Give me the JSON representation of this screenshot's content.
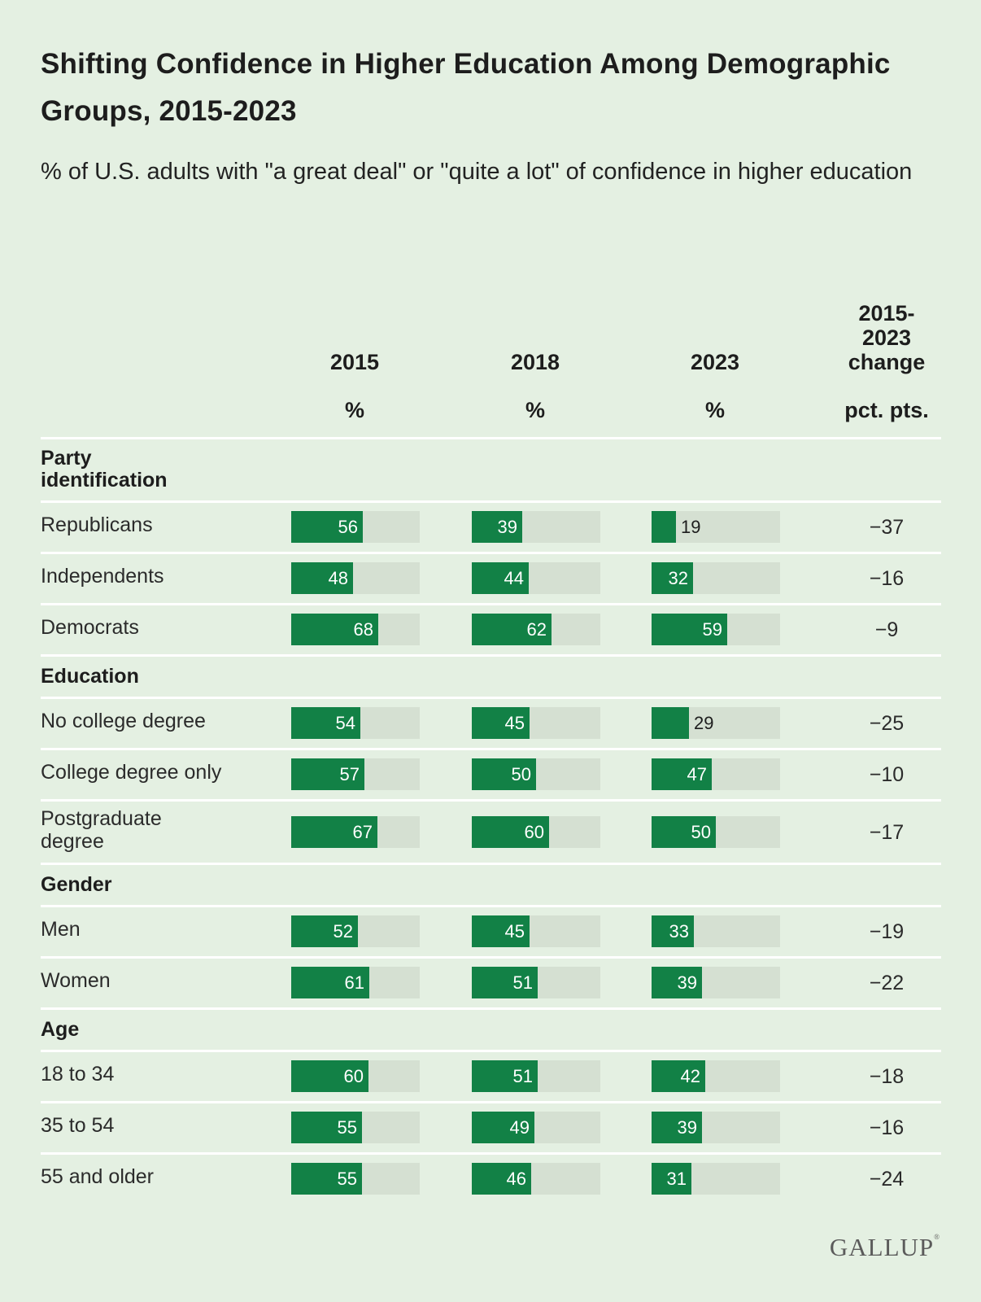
{
  "title": "Shifting Confidence in Higher Education Among Demographic Groups, 2015-2023",
  "subtitle": "% of U.S. adults with \"a great deal\" or \"quite a lot\" of confidence in higher education",
  "columns": [
    {
      "label": "2015",
      "unit": "%"
    },
    {
      "label": "2018",
      "unit": "%"
    },
    {
      "label": "2023",
      "unit": "%"
    },
    {
      "label": "2015-\n2023\nchange",
      "unit": "pct. pts."
    }
  ],
  "logo": "GALLUP",
  "colors": {
    "bar": "#128146",
    "track": "#d5e0d2",
    "background": "#e4f0e2"
  },
  "chart_data": {
    "type": "bar",
    "title": "Shifting Confidence in Higher Education Among Demographic Groups, 2015-2023",
    "subtitle": "% of U.S. adults with \"a great deal\" or \"quite a lot\" of confidence in higher education",
    "ylim": [
      0,
      100
    ],
    "series_names": [
      "2015",
      "2018",
      "2023"
    ],
    "groups": [
      {
        "name": "Party\nidentification",
        "rows": [
          {
            "label": "Republicans",
            "values": [
              56,
              39,
              19
            ],
            "change": "−37"
          },
          {
            "label": "Independents",
            "values": [
              48,
              44,
              32
            ],
            "change": "−16"
          },
          {
            "label": "Democrats",
            "values": [
              68,
              62,
              59
            ],
            "change": "−9"
          }
        ]
      },
      {
        "name": "Education",
        "rows": [
          {
            "label": "No college degree",
            "values": [
              54,
              45,
              29
            ],
            "change": "−25"
          },
          {
            "label": "College degree only",
            "values": [
              57,
              50,
              47
            ],
            "change": "−10"
          },
          {
            "label": "Postgraduate\ndegree",
            "values": [
              67,
              60,
              50
            ],
            "change": "−17"
          }
        ]
      },
      {
        "name": "Gender",
        "rows": [
          {
            "label": "Men",
            "values": [
              52,
              45,
              33
            ],
            "change": "−19"
          },
          {
            "label": "Women",
            "values": [
              61,
              51,
              39
            ],
            "change": "−22"
          }
        ]
      },
      {
        "name": "Age",
        "rows": [
          {
            "label": "18 to 34",
            "values": [
              60,
              51,
              42
            ],
            "change": "−18"
          },
          {
            "label": "35 to 54",
            "values": [
              55,
              49,
              39
            ],
            "change": "−16"
          },
          {
            "label": "55 and older",
            "values": [
              55,
              46,
              31
            ],
            "change": "−24"
          }
        ]
      }
    ]
  }
}
